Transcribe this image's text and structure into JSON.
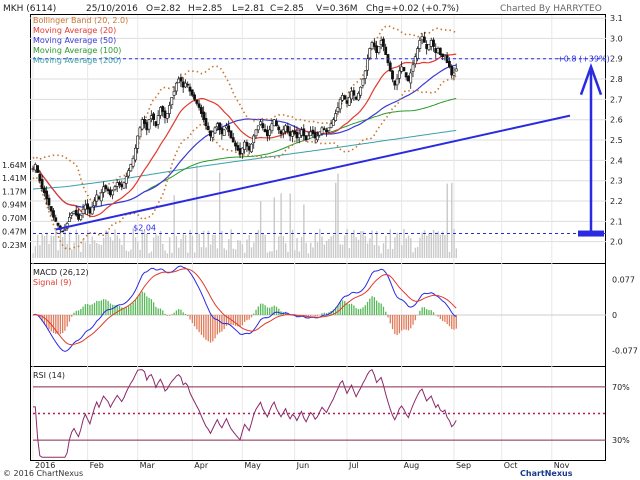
{
  "header": {
    "symbol": "MKH (6114)",
    "date": "25/10/2016",
    "open": "O=2.82",
    "high": "H=2.85",
    "low": "L=2.81",
    "close": "C=2.85",
    "volume": "V=0.36M",
    "change": "Chg=+0.02 (+0.7%)",
    "charted_by": "Charted By HARRYTEO"
  },
  "footer": {
    "copyright": "© 2016 ChartNexus",
    "brand": "ChartNexus"
  },
  "colors": {
    "bollinger": "#c9762f",
    "ma20": "#e23a2e",
    "ma50": "#3a3ad8",
    "ma100": "#2a9a2a",
    "ma200": "#3aa0a8",
    "trend": "#2a2ae0",
    "arrow": "#2a2ae0",
    "volume": "#c9c9c9",
    "macd_line": "#2a2ae0",
    "signal_line": "#e23a2e",
    "hist_pos": "#57b857",
    "hist_neg": "#e07a5a",
    "rsi_line": "#8a2a6a",
    "rsi_mid": "#b01c5a",
    "grid": "#dddddd",
    "candle": "#111111"
  },
  "chart_data": [
    {
      "type": "candlestick",
      "panel": "price",
      "legend": [
        "Bollinger Band (20, 2.0)",
        "Moving Average (20)",
        "Moving Average (50)",
        "Moving Average (100)",
        "Moving Average (200)"
      ],
      "ylim": [
        1.9,
        3.12
      ],
      "y_ticks": [
        "3.1",
        "3.0",
        "2.9",
        "2.8",
        "2.7",
        "2.6",
        "2.5",
        "2.4",
        "2.3",
        "2.2",
        "2.1",
        "2.0"
      ],
      "y_tick_values": [
        3.1,
        3.0,
        2.9,
        2.8,
        2.7,
        2.6,
        2.5,
        2.4,
        2.3,
        2.2,
        2.1,
        2.0
      ],
      "volume_ticks": [
        "1.64M",
        "1.41M",
        "1.17M",
        "0.94M",
        "0.70M",
        "0.47M",
        "0.23M"
      ],
      "volume_tick_values": [
        1.64,
        1.41,
        1.17,
        0.94,
        0.7,
        0.47,
        0.23
      ],
      "volume_max": 1.9,
      "x_months": [
        "2016",
        "Feb",
        "Mar",
        "Apr",
        "May",
        "Jun",
        "Jul",
        "Aug",
        "Sep",
        "Oct",
        "Nov"
      ],
      "x_month_pos": [
        0,
        24,
        46,
        70,
        92,
        115,
        138,
        162,
        185,
        206,
        228
      ],
      "x_range": [
        0,
        236
      ],
      "annotations": {
        "low_label": "$2.04",
        "low_value": 2.04,
        "gain_label": "+0.8 (+39%)",
        "high_value": 2.9
      },
      "trend_line": {
        "x": [
          10,
          236
        ],
        "y": [
          2.06,
          2.62
        ]
      },
      "closes": [
        2.36,
        2.38,
        2.34,
        2.3,
        2.26,
        2.24,
        2.21,
        2.18,
        2.15,
        2.12,
        2.1,
        2.08,
        2.06,
        2.05,
        2.06,
        2.09,
        2.12,
        2.14,
        2.15,
        2.13,
        2.11,
        2.13,
        2.16,
        2.18,
        2.16,
        2.14,
        2.17,
        2.2,
        2.23,
        2.21,
        2.24,
        2.27,
        2.26,
        2.25,
        2.23,
        2.25,
        2.27,
        2.29,
        2.28,
        2.27,
        2.29,
        2.32,
        2.35,
        2.38,
        2.41,
        2.46,
        2.52,
        2.56,
        2.6,
        2.58,
        2.55,
        2.6,
        2.62,
        2.6,
        2.57,
        2.62,
        2.66,
        2.64,
        2.61,
        2.63,
        2.67,
        2.71,
        2.74,
        2.78,
        2.8,
        2.79,
        2.76,
        2.78,
        2.77,
        2.74,
        2.72,
        2.7,
        2.68,
        2.66,
        2.63,
        2.6,
        2.57,
        2.55,
        2.52,
        2.54,
        2.56,
        2.58,
        2.55,
        2.53,
        2.55,
        2.57,
        2.54,
        2.51,
        2.49,
        2.47,
        2.45,
        2.43,
        2.46,
        2.49,
        2.47,
        2.45,
        2.48,
        2.52,
        2.55,
        2.57,
        2.59,
        2.56,
        2.54,
        2.52,
        2.55,
        2.58,
        2.6,
        2.57,
        2.55,
        2.53,
        2.55,
        2.57,
        2.54,
        2.52,
        2.54,
        2.53,
        2.51,
        2.53,
        2.55,
        2.52,
        2.5,
        2.52,
        2.54,
        2.53,
        2.51,
        2.52,
        2.54,
        2.56,
        2.55,
        2.54,
        2.56,
        2.58,
        2.6,
        2.63,
        2.66,
        2.7,
        2.72,
        2.7,
        2.68,
        2.71,
        2.74,
        2.72,
        2.7,
        2.73,
        2.76,
        2.8,
        2.84,
        2.9,
        2.95,
        2.98,
        2.96,
        2.93,
        2.96,
        2.99,
        2.96,
        2.92,
        2.88,
        2.84,
        2.8,
        2.77,
        2.8,
        2.84,
        2.86,
        2.84,
        2.81,
        2.79,
        2.83,
        2.87,
        2.91,
        2.95,
        2.99,
        3.01,
        2.98,
        2.95,
        2.97,
        2.99,
        2.96,
        2.93,
        2.95,
        2.92,
        2.91,
        2.92,
        2.88,
        2.86,
        2.82,
        2.83,
        2.85
      ]
    },
    {
      "type": "bar+line",
      "panel": "macd",
      "title": "MACD (26,12)",
      "signal_title": "Signal (9)",
      "y_ticks": [
        "0.077",
        "0",
        "-0.077"
      ],
      "y_tick_values": [
        0.077,
        0,
        -0.077
      ],
      "ylim": [
        -0.11,
        0.11
      ]
    },
    {
      "type": "line",
      "panel": "rsi",
      "title": "RSI (14)",
      "y_ticks": [
        "70%",
        "30%"
      ],
      "y_tick_values": [
        70,
        30
      ],
      "mid_level": 50,
      "ylim": [
        15,
        85
      ]
    }
  ]
}
